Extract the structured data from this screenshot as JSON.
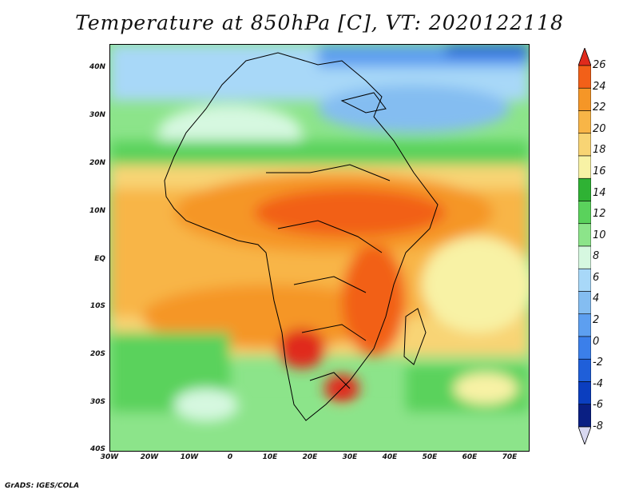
{
  "title": "Temperature at 850hPa [C], VT: 2020122118",
  "credit": "GrADS: IGES/COLA",
  "map": {
    "lat_labels": [
      "40N",
      "30N",
      "20N",
      "10N",
      "EQ",
      "10S",
      "20S",
      "30S",
      "40S"
    ],
    "lon_labels": [
      "30W",
      "20W",
      "10W",
      "0",
      "10E",
      "20E",
      "30E",
      "40E",
      "50E",
      "60E",
      "70E"
    ]
  },
  "colorbar": {
    "labels": [
      "26",
      "24",
      "22",
      "20",
      "18",
      "16",
      "14",
      "12",
      "10",
      "8",
      "6",
      "4",
      "2",
      "0",
      "-2",
      "-4",
      "-6",
      "-8"
    ],
    "colors": [
      "#e02a1c",
      "#f26018",
      "#f59627",
      "#f8b547",
      "#f8d474",
      "#f8f2a5",
      "#2fb234",
      "#5ad25c",
      "#8ce48a",
      "#d6f8e0",
      "#a8d8f8",
      "#84bdf1",
      "#5d9ff0",
      "#3b7fea",
      "#1f5fd9",
      "#0b3ebf",
      "#0a1f83",
      "#d8d8f0"
    ]
  }
}
